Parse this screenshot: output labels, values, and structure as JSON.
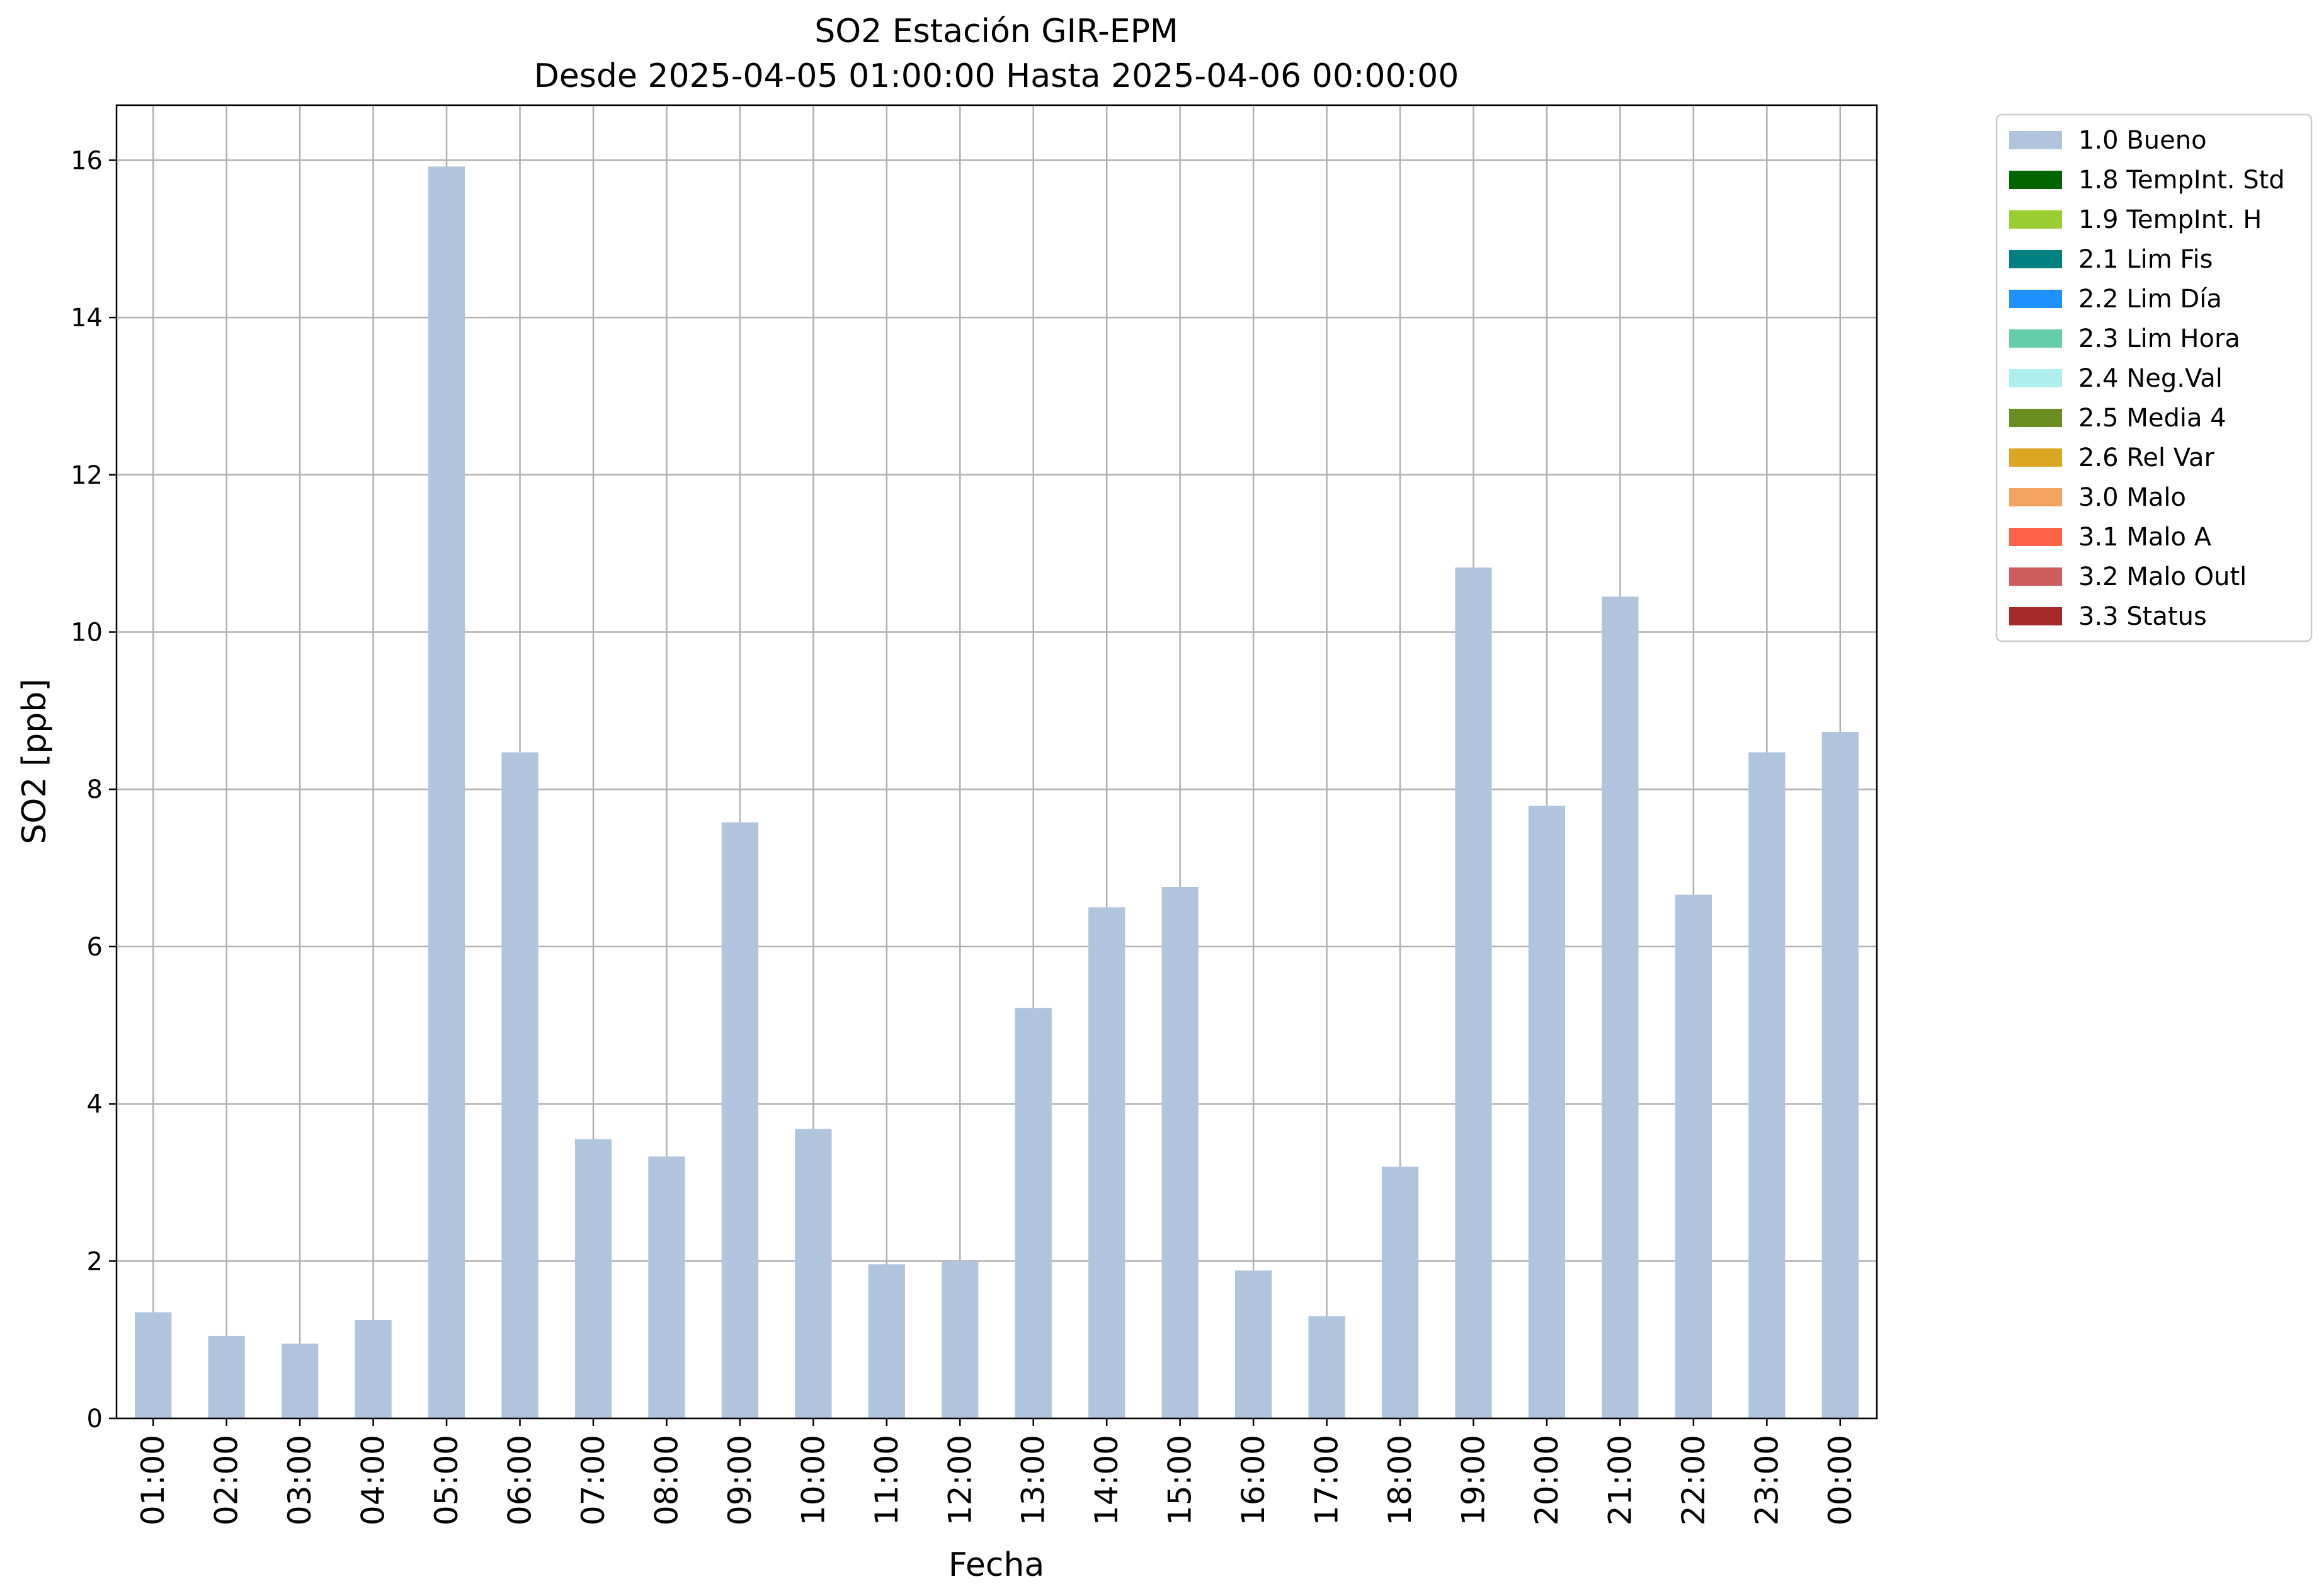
{
  "chart_data": {
    "type": "bar",
    "title": "SO2 Estación GIR-EPM",
    "subtitle": "Desde 2025-04-05 01:00:00 Hasta 2025-04-06 00:00:00",
    "xlabel": "Fecha",
    "ylabel": "SO2 [ppb]",
    "ylim": [
      0,
      16.7
    ],
    "yticks": [
      0,
      2,
      4,
      6,
      8,
      10,
      12,
      14,
      16
    ],
    "grid": true,
    "legend_position": "outside-top-right",
    "categories": [
      "01:00",
      "02:00",
      "03:00",
      "04:00",
      "05:00",
      "06:00",
      "07:00",
      "08:00",
      "09:00",
      "10:00",
      "11:00",
      "12:00",
      "13:00",
      "14:00",
      "15:00",
      "16:00",
      "17:00",
      "18:00",
      "19:00",
      "20:00",
      "21:00",
      "22:00",
      "23:00",
      "00:00"
    ],
    "series": [
      {
        "name": "1.0 Bueno",
        "color": "#b0c4de",
        "values": [
          1.35,
          1.05,
          0.95,
          1.25,
          15.92,
          8.47,
          3.55,
          3.33,
          7.58,
          3.68,
          1.96,
          2.0,
          5.22,
          6.5,
          6.76,
          1.88,
          1.3,
          3.2,
          10.82,
          7.79,
          10.45,
          6.66,
          8.47,
          8.73
        ]
      }
    ],
    "legend": [
      {
        "label": "1.0 Bueno",
        "color": "#b0c4de"
      },
      {
        "label": "1.8 TempInt. Std",
        "color": "#006400"
      },
      {
        "label": "1.9 TempInt. H",
        "color": "#9acd32"
      },
      {
        "label": "2.1 Lim Fis",
        "color": "#008080"
      },
      {
        "label": "2.2 Lim Día",
        "color": "#1e90ff"
      },
      {
        "label": "2.3 Lim Hora",
        "color": "#66cdaa"
      },
      {
        "label": "2.4 Neg.Val",
        "color": "#afeeee"
      },
      {
        "label": "2.5 Media 4",
        "color": "#6b8e23"
      },
      {
        "label": "2.6 Rel Var",
        "color": "#daa520"
      },
      {
        "label": "3.0 Malo",
        "color": "#f4a460"
      },
      {
        "label": "3.1 Malo A",
        "color": "#ff6347"
      },
      {
        "label": "3.2 Malo Outl",
        "color": "#cd5c5c"
      },
      {
        "label": "3.3 Status",
        "color": "#a52a2a"
      }
    ]
  }
}
